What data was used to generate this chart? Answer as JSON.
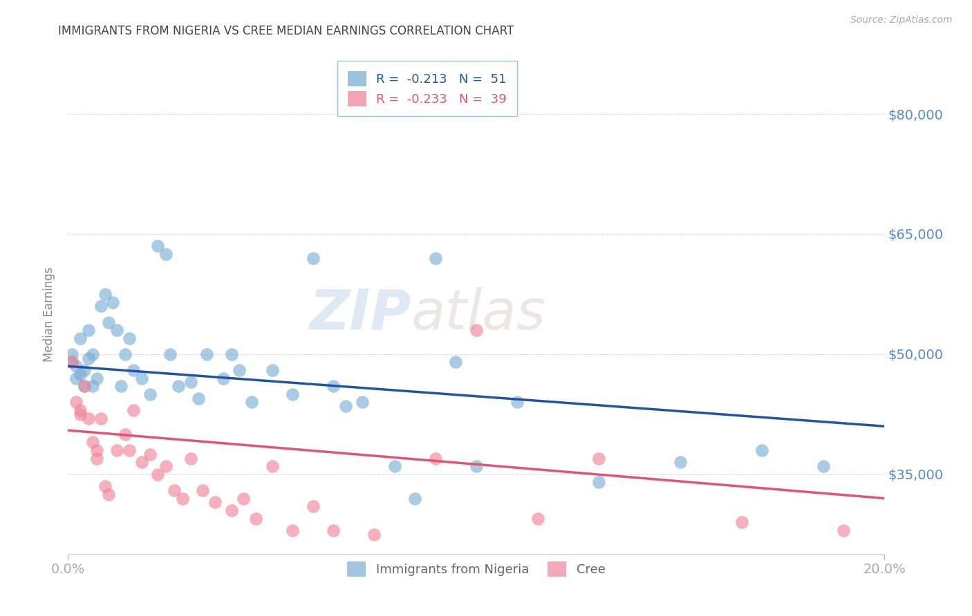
{
  "title": "IMMIGRANTS FROM NIGERIA VS CREE MEDIAN EARNINGS CORRELATION CHART",
  "source": "Source: ZipAtlas.com",
  "xlabel": "",
  "ylabel": "Median Earnings",
  "watermark": "ZIPatlas",
  "xlim": [
    0.0,
    0.2
  ],
  "ylim": [
    25000,
    85000
  ],
  "yticks": [
    35000,
    50000,
    65000,
    80000
  ],
  "xticks": [
    0.0,
    0.2
  ],
  "xtick_labels": [
    "0.0%",
    "20.0%"
  ],
  "ytick_labels": [
    "$35,000",
    "$50,000",
    "$65,000",
    "$80,000"
  ],
  "nigeria_color": "#7bafd4",
  "cree_color": "#f0859a",
  "nigeria_line_color": "#2155a0",
  "cree_line_color": "#e05575",
  "nigeria_R": -0.213,
  "nigeria_N": 51,
  "cree_R": -0.233,
  "cree_N": 39,
  "nigeria_line_x0": 0.0,
  "nigeria_line_y0": 48500,
  "nigeria_line_x1": 0.2,
  "nigeria_line_y1": 41000,
  "cree_line_x0": 0.0,
  "cree_line_y0": 40500,
  "cree_line_x1": 0.2,
  "cree_line_y1": 32000,
  "nigeria_x": [
    0.001,
    0.001,
    0.002,
    0.002,
    0.003,
    0.003,
    0.004,
    0.004,
    0.005,
    0.005,
    0.006,
    0.006,
    0.007,
    0.008,
    0.009,
    0.01,
    0.011,
    0.012,
    0.013,
    0.014,
    0.015,
    0.016,
    0.018,
    0.02,
    0.022,
    0.024,
    0.025,
    0.027,
    0.03,
    0.032,
    0.034,
    0.038,
    0.04,
    0.042,
    0.045,
    0.05,
    0.055,
    0.06,
    0.065,
    0.068,
    0.072,
    0.08,
    0.085,
    0.09,
    0.095,
    0.1,
    0.11,
    0.13,
    0.15,
    0.17,
    0.185
  ],
  "nigeria_y": [
    49000,
    50000,
    48500,
    47000,
    47500,
    52000,
    46000,
    48000,
    49500,
    53000,
    46000,
    50000,
    47000,
    56000,
    57500,
    54000,
    56500,
    53000,
    46000,
    50000,
    52000,
    48000,
    47000,
    45000,
    63500,
    62500,
    50000,
    46000,
    46500,
    44500,
    50000,
    47000,
    50000,
    48000,
    44000,
    48000,
    45000,
    62000,
    46000,
    43500,
    44000,
    36000,
    32000,
    62000,
    49000,
    36000,
    44000,
    34000,
    36500,
    38000,
    36000
  ],
  "cree_x": [
    0.001,
    0.002,
    0.003,
    0.003,
    0.004,
    0.005,
    0.006,
    0.007,
    0.007,
    0.008,
    0.009,
    0.01,
    0.012,
    0.014,
    0.015,
    0.016,
    0.018,
    0.02,
    0.022,
    0.024,
    0.026,
    0.028,
    0.03,
    0.033,
    0.036,
    0.04,
    0.043,
    0.046,
    0.05,
    0.055,
    0.06,
    0.065,
    0.075,
    0.09,
    0.1,
    0.115,
    0.13,
    0.165,
    0.19
  ],
  "cree_y": [
    49000,
    44000,
    43000,
    42500,
    46000,
    42000,
    39000,
    37000,
    38000,
    42000,
    33500,
    32500,
    38000,
    40000,
    38000,
    43000,
    36500,
    37500,
    35000,
    36000,
    33000,
    32000,
    37000,
    33000,
    31500,
    30500,
    32000,
    29500,
    36000,
    28000,
    31000,
    28000,
    27500,
    37000,
    53000,
    29500,
    37000,
    29000,
    28000
  ],
  "background_color": "#ffffff",
  "grid_color": "#cccccc",
  "title_color": "#444444",
  "tick_label_color": "#5588cc"
}
